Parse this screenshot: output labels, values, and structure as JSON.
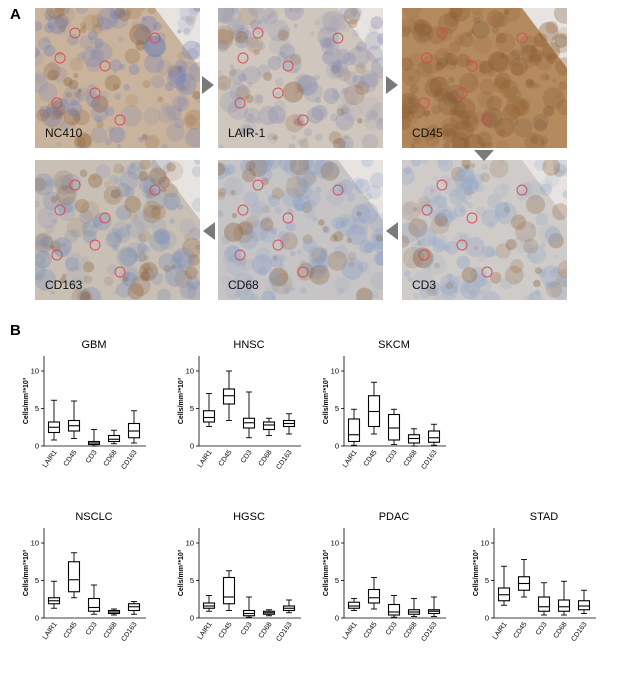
{
  "panels": {
    "a": "A",
    "b": "B"
  },
  "tiles": [
    {
      "label": "NC410",
      "base": "#c9b39c",
      "tint": "#6f7fb8",
      "brown": 0.35
    },
    {
      "label": "LAIR-1",
      "base": "#cfc6bd",
      "tint": "#8c8fb0",
      "brown": 0.15
    },
    {
      "label": "CD45",
      "base": "#b48a5f",
      "tint": "#7a5a3a",
      "brown": 0.8
    },
    {
      "label": "CD163",
      "base": "#c8bfb5",
      "tint": "#7c8fb5",
      "brown": 0.3
    },
    {
      "label": "CD68",
      "base": "#c6c4c4",
      "tint": "#8a9fc8",
      "brown": 0.2
    },
    {
      "label": "CD3",
      "base": "#cfcbc8",
      "tint": "#8fa5c8",
      "brown": 0.25
    }
  ],
  "chart_data": [
    {
      "type": "box",
      "title": "GBM",
      "ylabel": "Cells/mm²*10³",
      "ylim": [
        0,
        12
      ],
      "yticks": [
        0,
        5,
        10
      ],
      "categories": [
        "LAIR1",
        "CD45",
        "CD3",
        "CD68",
        "CD163"
      ],
      "boxes": [
        {
          "min": 0.8,
          "q1": 1.8,
          "median": 2.5,
          "q3": 3.2,
          "max": 6.1
        },
        {
          "min": 1.0,
          "q1": 2.0,
          "median": 2.7,
          "q3": 3.4,
          "max": 6.0
        },
        {
          "min": 0.0,
          "q1": 0.2,
          "median": 0.4,
          "q3": 0.6,
          "max": 2.2
        },
        {
          "min": 0.3,
          "q1": 0.6,
          "median": 0.9,
          "q3": 1.4,
          "max": 2.1
        },
        {
          "min": 0.4,
          "q1": 1.1,
          "median": 2.0,
          "q3": 3.0,
          "max": 4.7
        }
      ]
    },
    {
      "type": "box",
      "title": "HNSC",
      "ylabel": "Cells/mm²*10³",
      "ylim": [
        0,
        12
      ],
      "yticks": [
        0,
        5,
        10
      ],
      "categories": [
        "LAIR1",
        "CD45",
        "CD3",
        "CD68",
        "CD163"
      ],
      "boxes": [
        {
          "min": 2.6,
          "q1": 3.2,
          "median": 3.8,
          "q3": 4.7,
          "max": 7.0
        },
        {
          "min": 3.4,
          "q1": 5.6,
          "median": 6.7,
          "q3": 7.6,
          "max": 10.0
        },
        {
          "min": 1.1,
          "q1": 2.4,
          "median": 3.1,
          "q3": 3.7,
          "max": 7.2
        },
        {
          "min": 1.4,
          "q1": 2.2,
          "median": 2.8,
          "q3": 3.2,
          "max": 3.7
        },
        {
          "min": 1.6,
          "q1": 2.6,
          "median": 3.0,
          "q3": 3.4,
          "max": 4.3
        }
      ]
    },
    {
      "type": "box",
      "title": "SKCM",
      "ylabel": "Cells/mm²*10³",
      "ylim": [
        0,
        12
      ],
      "yticks": [
        0,
        5,
        10
      ],
      "categories": [
        "LAIR1",
        "CD45",
        "CD3",
        "CD68",
        "CD163"
      ],
      "boxes": [
        {
          "min": 0.1,
          "q1": 0.6,
          "median": 1.5,
          "q3": 3.6,
          "max": 4.9
        },
        {
          "min": 1.6,
          "q1": 2.6,
          "median": 4.6,
          "q3": 6.7,
          "max": 8.5
        },
        {
          "min": 0.2,
          "q1": 0.8,
          "median": 2.4,
          "q3": 4.2,
          "max": 4.9
        },
        {
          "min": 0.0,
          "q1": 0.4,
          "median": 1.0,
          "q3": 1.5,
          "max": 2.3
        },
        {
          "min": 0.1,
          "q1": 0.5,
          "median": 1.1,
          "q3": 2.0,
          "max": 2.9
        }
      ]
    },
    {
      "type": "box",
      "title": "NSCLC",
      "ylabel": "Cells/mm²*10³",
      "ylim": [
        0,
        12
      ],
      "yticks": [
        0,
        5,
        10
      ],
      "categories": [
        "LAIR1",
        "CD45",
        "CD3",
        "CD68",
        "CD163"
      ],
      "boxes": [
        {
          "min": 1.3,
          "q1": 1.9,
          "median": 2.3,
          "q3": 2.7,
          "max": 4.9
        },
        {
          "min": 2.7,
          "q1": 3.5,
          "median": 5.1,
          "q3": 7.5,
          "max": 8.7
        },
        {
          "min": 0.5,
          "q1": 0.9,
          "median": 1.4,
          "q3": 2.6,
          "max": 4.4
        },
        {
          "min": 0.4,
          "q1": 0.6,
          "median": 0.8,
          "q3": 1.0,
          "max": 1.2
        },
        {
          "min": 0.5,
          "q1": 1.0,
          "median": 1.5,
          "q3": 1.9,
          "max": 2.2
        }
      ]
    },
    {
      "type": "box",
      "title": "HGSC",
      "ylabel": "Cells/mm²*10³",
      "ylim": [
        0,
        12
      ],
      "yticks": [
        0,
        5,
        10
      ],
      "categories": [
        "LAIR1",
        "CD45",
        "CD3",
        "CD68",
        "CD163"
      ],
      "boxes": [
        {
          "min": 0.9,
          "q1": 1.3,
          "median": 1.6,
          "q3": 2.0,
          "max": 3.0
        },
        {
          "min": 1.0,
          "q1": 1.9,
          "median": 2.8,
          "q3": 5.4,
          "max": 6.3
        },
        {
          "min": 0.1,
          "q1": 0.3,
          "median": 0.6,
          "q3": 1.0,
          "max": 2.8
        },
        {
          "min": 0.3,
          "q1": 0.5,
          "median": 0.7,
          "q3": 0.9,
          "max": 1.1
        },
        {
          "min": 0.7,
          "q1": 1.0,
          "median": 1.3,
          "q3": 1.6,
          "max": 2.4
        }
      ]
    },
    {
      "type": "box",
      "title": "PDAC",
      "ylabel": "Cells/mm²*10³",
      "ylim": [
        0,
        12
      ],
      "yticks": [
        0,
        5,
        10
      ],
      "categories": [
        "LAIR1",
        "CD45",
        "CD3",
        "CD68",
        "CD163"
      ],
      "boxes": [
        {
          "min": 1.0,
          "q1": 1.3,
          "median": 1.6,
          "q3": 2.1,
          "max": 2.6
        },
        {
          "min": 1.2,
          "q1": 2.0,
          "median": 2.7,
          "q3": 3.8,
          "max": 5.4
        },
        {
          "min": 0.1,
          "q1": 0.4,
          "median": 0.8,
          "q3": 1.8,
          "max": 3.0
        },
        {
          "min": 0.2,
          "q1": 0.5,
          "median": 0.8,
          "q3": 1.1,
          "max": 2.6
        },
        {
          "min": 0.2,
          "q1": 0.6,
          "median": 0.9,
          "q3": 1.1,
          "max": 2.8
        }
      ]
    },
    {
      "type": "box",
      "title": "STAD",
      "ylabel": "Cells/mm²*10³",
      "ylim": [
        0,
        12
      ],
      "yticks": [
        0,
        5,
        10
      ],
      "categories": [
        "LAIR1",
        "CD45",
        "CD3",
        "CD68",
        "CD163"
      ],
      "boxes": [
        {
          "min": 1.7,
          "q1": 2.3,
          "median": 3.1,
          "q3": 4.0,
          "max": 6.9
        },
        {
          "min": 2.8,
          "q1": 3.7,
          "median": 4.6,
          "q3": 5.5,
          "max": 7.8
        },
        {
          "min": 0.4,
          "q1": 0.9,
          "median": 1.5,
          "q3": 2.8,
          "max": 4.7
        },
        {
          "min": 0.4,
          "q1": 0.9,
          "median": 1.5,
          "q3": 2.4,
          "max": 4.9
        },
        {
          "min": 0.6,
          "q1": 1.1,
          "median": 1.6,
          "q3": 2.3,
          "max": 3.7
        }
      ]
    }
  ]
}
